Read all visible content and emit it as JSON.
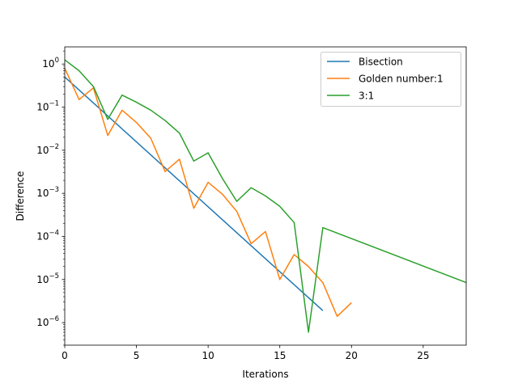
{
  "chart_data": {
    "type": "line",
    "title": "",
    "xlabel": "Iterations",
    "ylabel": "Difference",
    "xlim": [
      0,
      28
    ],
    "ylim": [
      3e-07,
      2.5
    ],
    "yscale": "log",
    "grid": false,
    "legend_position": "top-right",
    "x_ticks": [
      0,
      5,
      10,
      15,
      20,
      25
    ],
    "y_ticks": [
      {
        "value": 1e-06,
        "base": "10",
        "exp": "−6"
      },
      {
        "value": 1e-05,
        "base": "10",
        "exp": "−5"
      },
      {
        "value": 0.0001,
        "base": "10",
        "exp": "−4"
      },
      {
        "value": 0.001,
        "base": "10",
        "exp": "−3"
      },
      {
        "value": 0.01,
        "base": "10",
        "exp": "−2"
      },
      {
        "value": 0.1,
        "base": "10",
        "exp": "−1"
      },
      {
        "value": 1,
        "base": "10",
        "exp": "0"
      }
    ],
    "series": [
      {
        "name": "Bisection",
        "color": "#1f77b4",
        "x": [
          0,
          18
        ],
        "y": [
          0.5,
          1.9e-06
        ]
      },
      {
        "name": "Golden number:1",
        "color": "#ff7f0e",
        "x": [
          0,
          1,
          2,
          3,
          4,
          5,
          6,
          7,
          8,
          9,
          10,
          11,
          12,
          13,
          14,
          15,
          16,
          17,
          18,
          19,
          20
        ],
        "y": [
          0.8,
          0.15,
          0.28,
          0.022,
          0.085,
          0.044,
          0.019,
          0.0032,
          0.0062,
          0.00045,
          0.0018,
          0.00095,
          0.00038,
          6.8e-05,
          0.00013,
          1e-05,
          3.8e-05,
          2e-05,
          8.5e-06,
          1.4e-06,
          2.9e-06
        ]
      },
      {
        "name": "3:1",
        "color": "#2ca02c",
        "x": [
          0,
          1,
          2,
          3,
          4,
          5,
          6,
          7,
          8,
          9,
          10,
          11,
          12,
          13,
          14,
          15,
          16,
          17,
          18,
          28
        ],
        "y": [
          1.25,
          0.7,
          0.3,
          0.052,
          0.19,
          0.13,
          0.085,
          0.049,
          0.025,
          0.0056,
          0.0087,
          0.0022,
          0.00065,
          0.00135,
          0.00087,
          0.0005,
          0.00021,
          6e-07,
          0.00016,
          8.5e-06
        ]
      }
    ]
  }
}
